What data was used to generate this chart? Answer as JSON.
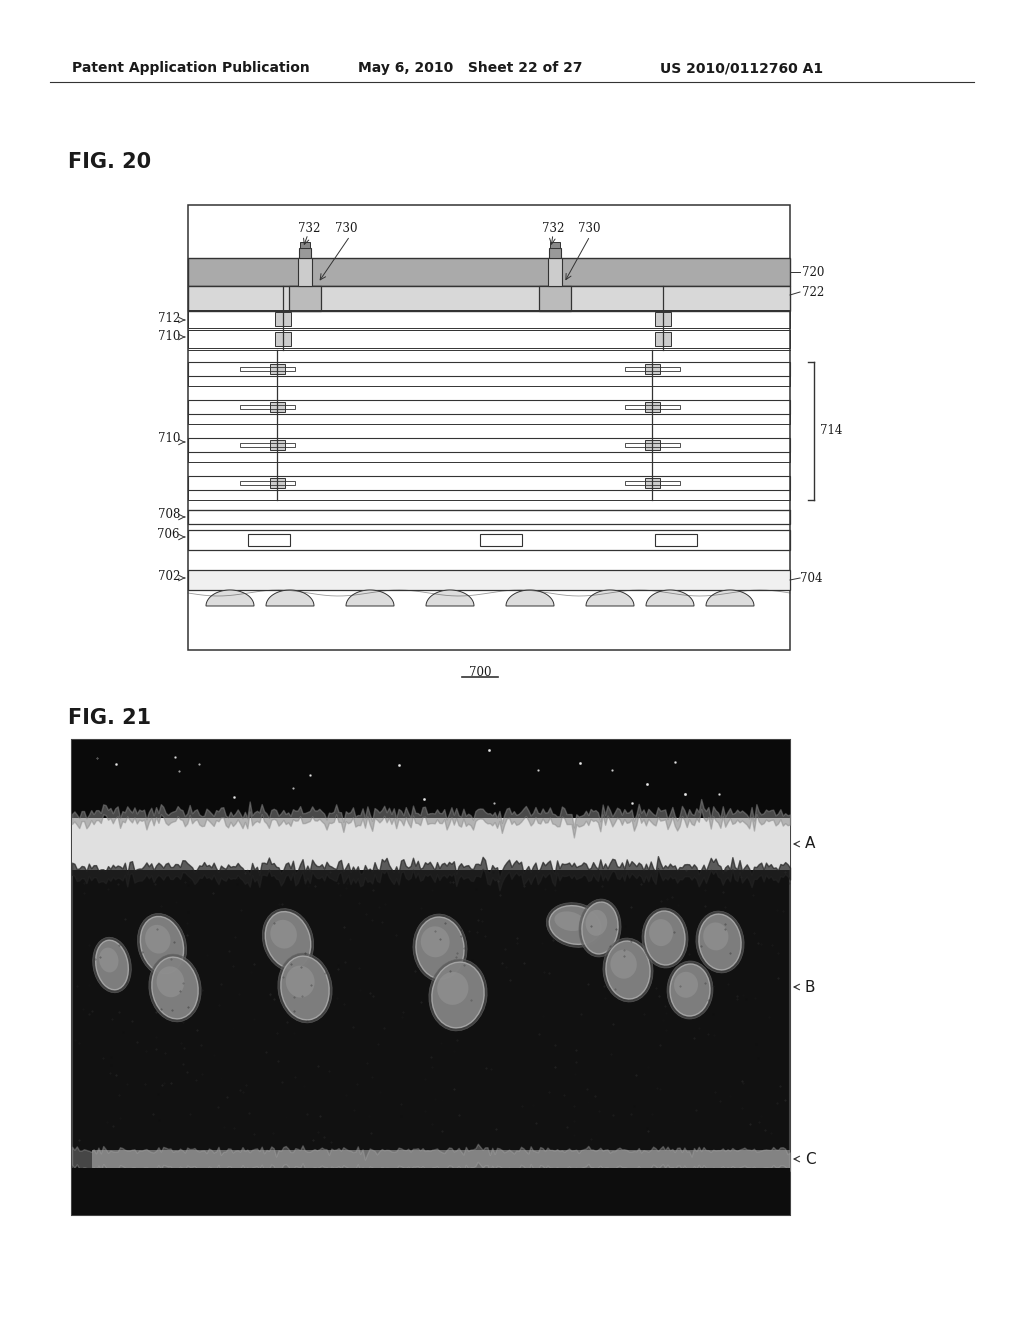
{
  "header_left": "Patent Application Publication",
  "header_mid": "May 6, 2010   Sheet 22 of 27",
  "header_right": "US 2010/0112760 A1",
  "fig20_label": "FIG. 20",
  "fig21_label": "FIG. 21",
  "bg_color": "#ffffff",
  "text_color": "#1a1a1a",
  "diagram_line_color": "#333333",
  "photo_label_A": "A",
  "photo_label_B": "B",
  "photo_label_C": "C"
}
